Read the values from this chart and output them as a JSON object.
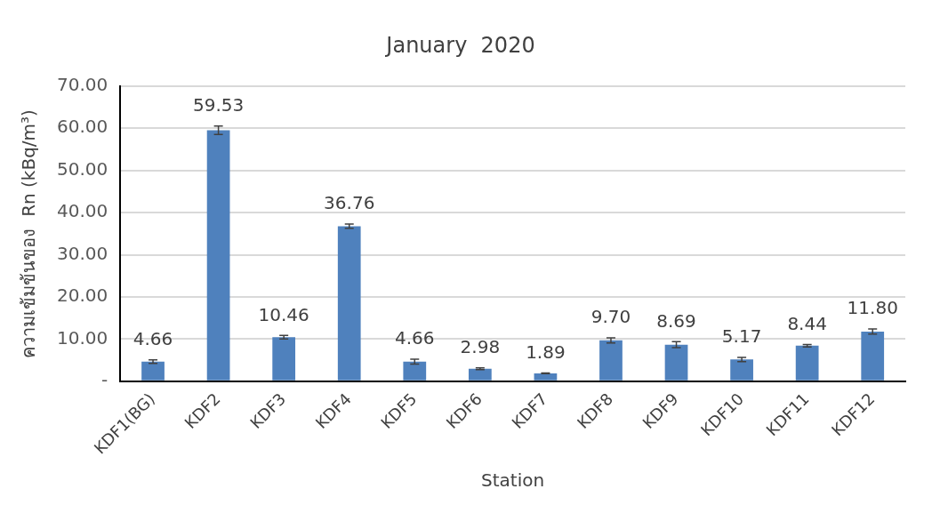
{
  "chart_data": {
    "type": "bar",
    "title": "January  2020",
    "xlabel": "Station",
    "ylabel": "ความเข้มข้นของ  Rn (kBq/m³)",
    "categories": [
      "KDF1(BG)",
      "KDF2",
      "KDF3",
      "KDF4",
      "KDF5",
      "KDF6",
      "KDF7",
      "KDF8",
      "KDF9",
      "KDF10",
      "KDF11",
      "KDF12"
    ],
    "values": [
      4.66,
      59.53,
      10.46,
      36.76,
      4.66,
      2.98,
      1.89,
      9.7,
      8.69,
      5.17,
      8.44,
      11.8
    ],
    "errors": [
      0.4,
      1.0,
      0.4,
      0.5,
      0.6,
      0.2,
      0.1,
      0.6,
      0.7,
      0.5,
      0.3,
      0.6
    ],
    "value_labels": [
      "4.66",
      "59.53",
      "10.46",
      "36.76",
      "4.66",
      "2.98",
      "1.89",
      "9.70",
      "8.69",
      "5.17",
      "8.44",
      "11.80"
    ],
    "color": "#4f81bd",
    "grid": "y",
    "legend": false,
    "ylim": [
      0,
      70
    ],
    "yticks": [
      {
        "value": 0,
        "label": "-"
      },
      {
        "value": 10,
        "label": "10.00"
      },
      {
        "value": 20,
        "label": "20.00"
      },
      {
        "value": 30,
        "label": "30.00"
      },
      {
        "value": 40,
        "label": "40.00"
      },
      {
        "value": 50,
        "label": "50.00"
      },
      {
        "value": 60,
        "label": "60.00"
      },
      {
        "value": 70,
        "label": "70.00"
      }
    ]
  }
}
